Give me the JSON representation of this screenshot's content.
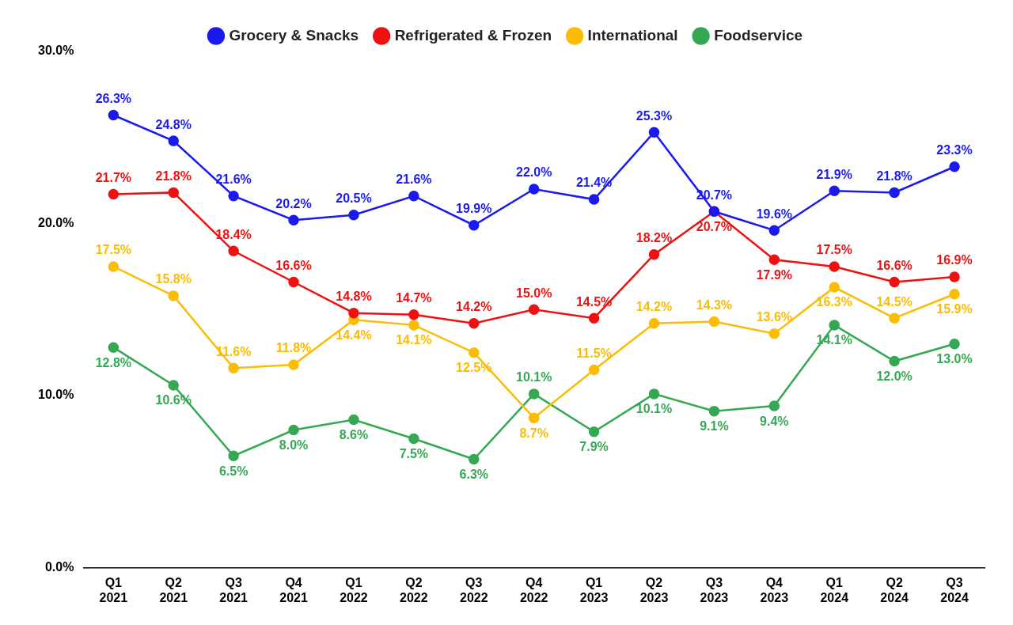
{
  "chart_data": {
    "type": "line",
    "categories": [
      "Q1 2021",
      "Q2 2021",
      "Q3 2021",
      "Q4 2021",
      "Q1 2022",
      "Q2 2022",
      "Q3 2022",
      "Q4 2022",
      "Q1 2023",
      "Q2 2023",
      "Q3 2023",
      "Q4 2023",
      "Q1 2024",
      "Q2 2024",
      "Q3 2024"
    ],
    "series": [
      {
        "name": "Grocery & Snacks",
        "color": "#1a1aee",
        "values": [
          26.3,
          24.8,
          21.6,
          20.2,
          20.5,
          21.6,
          19.9,
          22.0,
          21.4,
          25.3,
          20.7,
          19.6,
          21.9,
          21.8,
          23.3
        ],
        "value_labels": [
          "26.3%",
          "24.8%",
          "21.6%",
          "20.2%",
          "20.5%",
          "21.6%",
          "19.9%",
          "22.0%",
          "21.4%",
          "25.3%",
          "20.7%",
          "19.6%",
          "21.9%",
          "21.8%",
          "23.3%"
        ]
      },
      {
        "name": "Refrigerated & Frozen",
        "color": "#ee1111",
        "values": [
          21.7,
          21.8,
          18.4,
          16.6,
          14.8,
          14.7,
          14.2,
          15.0,
          14.5,
          18.2,
          20.7,
          17.9,
          17.5,
          16.6,
          16.9
        ],
        "value_labels": [
          "21.7%",
          "21.8%",
          "18.4%",
          "16.6%",
          "14.8%",
          "14.7%",
          "14.2%",
          "15.0%",
          "14.5%",
          "18.2%",
          "20.7%",
          "17.9%",
          "17.5%",
          "16.6%",
          "16.9%"
        ]
      },
      {
        "name": "International",
        "color": "#fbbc04",
        "values": [
          17.5,
          15.8,
          11.6,
          11.8,
          14.4,
          14.1,
          12.5,
          8.7,
          11.5,
          14.2,
          14.3,
          13.6,
          16.3,
          14.5,
          15.9
        ],
        "value_labels": [
          "17.5%",
          "15.8%",
          "11.6%",
          "11.8%",
          "14.4%",
          "14.1%",
          "12.5%",
          "8.7%",
          "11.5%",
          "14.2%",
          "14.3%",
          "13.6%",
          "16.3%",
          "14.5%",
          "15.9%"
        ]
      },
      {
        "name": "Foodservice",
        "color": "#34a853",
        "values": [
          12.8,
          10.6,
          6.5,
          8.0,
          8.6,
          7.5,
          6.3,
          10.1,
          7.9,
          10.1,
          9.1,
          9.4,
          14.1,
          12.0,
          13.0
        ],
        "value_labels": [
          "12.8%",
          "10.6%",
          "6.5%",
          "8.0%",
          "8.6%",
          "7.5%",
          "6.3%",
          "10.1%",
          "7.9%",
          "10.1%",
          "9.1%",
          "9.4%",
          "14.1%",
          "12.0%",
          "13.0%"
        ]
      }
    ],
    "ylim": [
      0,
      30
    ],
    "yticks": [
      {
        "value": 0,
        "label": "0.0%"
      },
      {
        "value": 10,
        "label": "10.0%"
      },
      {
        "value": 20,
        "label": "20.0%"
      },
      {
        "value": 30,
        "label": "30.0%"
      }
    ],
    "grid": false,
    "legend": "top",
    "data_labels": true,
    "marker": "circle",
    "line_style": "solid"
  }
}
